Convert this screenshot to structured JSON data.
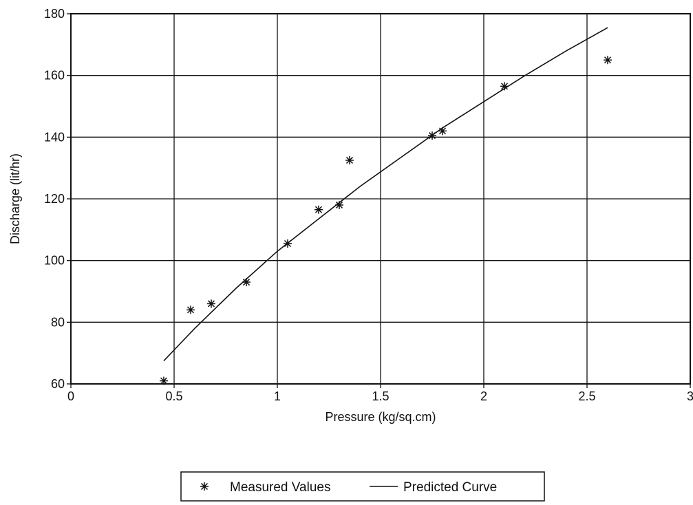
{
  "chart_data": {
    "type": "scatter",
    "xlabel": "Pressure (kg/sq.cm)",
    "ylabel": "Discharge (lit/hr)",
    "xlim": [
      0,
      3
    ],
    "ylim": [
      60,
      180
    ],
    "x_ticks": [
      "0",
      "0.5",
      "1",
      "1.5",
      "2",
      "2.5",
      "3"
    ],
    "y_ticks": [
      "60",
      "80",
      "100",
      "120",
      "140",
      "160",
      "180"
    ],
    "grid": true,
    "legend_position": "bottom-center",
    "series": [
      {
        "name": "Measured Values",
        "marker": "asterisk",
        "x": [
          0.45,
          0.58,
          0.68,
          0.85,
          1.05,
          1.2,
          1.3,
          1.35,
          1.75,
          1.8,
          2.1,
          2.6
        ],
        "y": [
          61,
          84,
          86,
          93,
          105.5,
          116.5,
          118,
          132.5,
          140.5,
          142,
          156.5,
          165
        ]
      },
      {
        "name": "Predicted Curve",
        "marker": "line",
        "x": [
          0.45,
          0.6,
          0.8,
          1.0,
          1.2,
          1.4,
          1.6,
          1.8,
          2.0,
          2.2,
          2.4,
          2.6
        ],
        "y": [
          67.5,
          78,
          91,
          103,
          113.5,
          124,
          133.5,
          143,
          151.5,
          160,
          168,
          175.5
        ]
      }
    ]
  }
}
